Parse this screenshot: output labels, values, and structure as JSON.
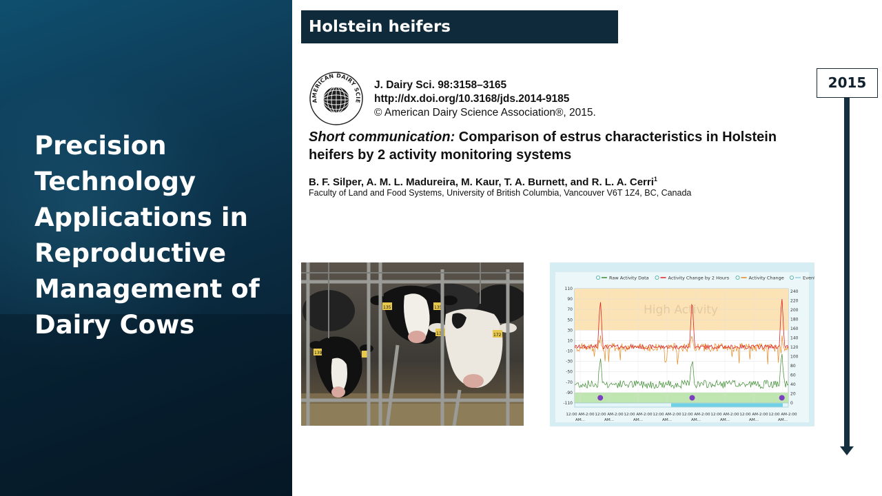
{
  "slide": {
    "main_title": "Precision Technology Applications in Reproductive Management of Dairy Cows",
    "heading": "Holstein heifers",
    "year": "2015"
  },
  "citation": {
    "seal_text": "AMERICAN DAIRY SCIENCE ASSOCIATION",
    "journal": "J. Dairy Sci. 98:3158–3165",
    "doi": "http://dx.doi.org/10.3168/jds.2014-9185",
    "copyright": "© American Dairy Science Association®, 2015.",
    "title_italic": "Short communication:",
    "title_rest": " Comparison of estrus characteristics in Holstein heifers by 2 activity monitoring systems",
    "authors": "B. F. Silper, A. M. L. Madureira, M. Kaur, T. A. Burnett, and R. L. A. Cerri",
    "author_sup": "1",
    "affiliation": "Faculty of Land and Food Systems, University of British Columbia, Vancouver V6T 1Z4, BC, Canada"
  },
  "photo": {
    "tags": [
      "139",
      "135",
      "135",
      "137",
      "172"
    ]
  },
  "chart_data": {
    "type": "line",
    "legend": [
      "Raw Activity Data",
      "Activity Change by 2 Hours",
      "Activity Change",
      "Events"
    ],
    "band_label": "High Activity",
    "left_ticks": [
      "110",
      "90",
      "70",
      "50",
      "30",
      "10",
      "-10",
      "-30",
      "-50",
      "-70",
      "-90",
      "-110"
    ],
    "right_ticks": [
      "240",
      "220",
      "200",
      "180",
      "160",
      "140",
      "120",
      "100",
      "80",
      "60",
      "40",
      "20",
      "0"
    ],
    "x_ticks": [
      "12:00 AM-2:00 AM...",
      "12:00 AM-2:00 AM...",
      "12:00 AM-2:00 AM...",
      "12:00 AM-2:00 AM...",
      "12:00 AM-2:00 AM...",
      "12:00 AM-2:00 AM...",
      "12:00 AM-2:00 AM...",
      "12:00 AM-2:00 AM..."
    ],
    "ylim_left": [
      -110,
      110
    ],
    "ylim_right": [
      0,
      240
    ],
    "peaks_at_fraction": [
      0.12,
      0.55,
      0.97
    ],
    "colors": {
      "raw": "#3a8a2e",
      "change2h": "#e02020",
      "change": "#e8861a",
      "band": "#fbe3b5",
      "green_band": "#bfe5b0"
    }
  }
}
